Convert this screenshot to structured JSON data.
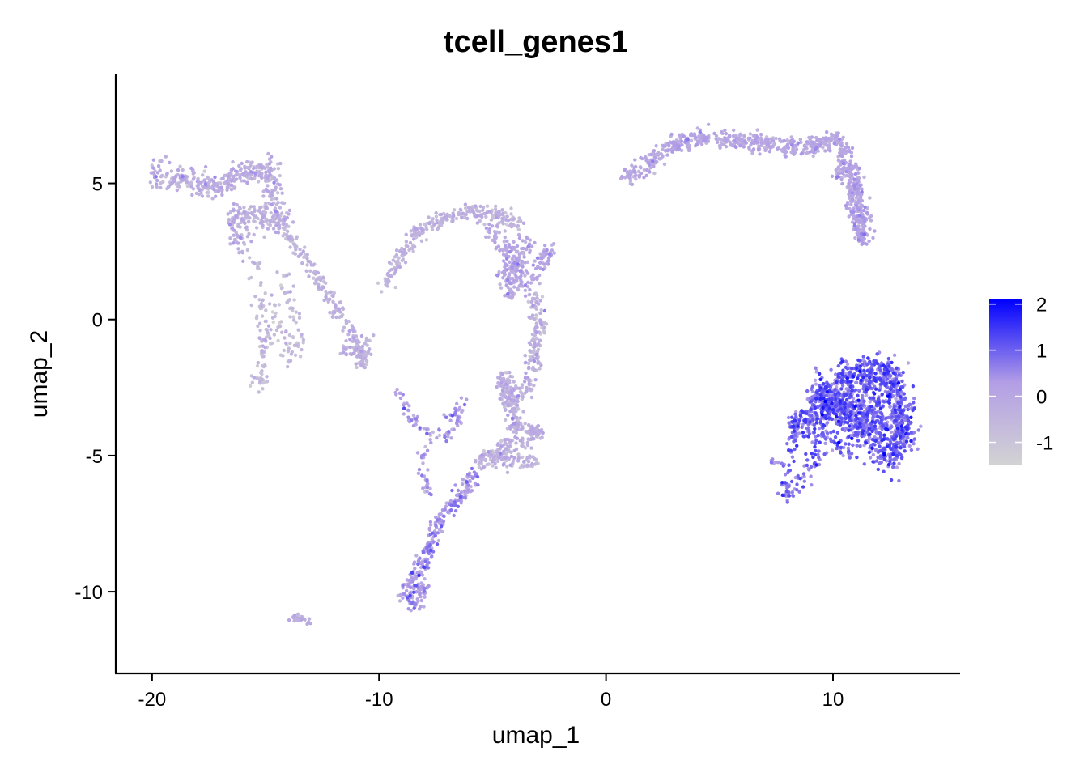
{
  "chart_data": {
    "type": "scatter",
    "title": "tcell_genes1",
    "xlabel": "umap_1",
    "ylabel": "umap_2",
    "xlim": [
      -21.6,
      15.6
    ],
    "ylim": [
      -13.0,
      9.0
    ],
    "xticks": [
      -20,
      -10,
      0,
      10
    ],
    "yticks": [
      5,
      0,
      -5,
      -10
    ],
    "xtick_labels": [
      "-20",
      "-10",
      "0",
      "10"
    ],
    "ytick_labels": [
      "5",
      "0",
      "-5",
      "-10"
    ],
    "grid": false,
    "legend": {
      "placement": "right",
      "type": "colorbar",
      "range": [
        -1.5,
        2.1
      ],
      "ticks": [
        2,
        1,
        0,
        -1
      ],
      "tick_labels": [
        "2",
        "1",
        "0",
        "-1"
      ],
      "color_low": "#d3d3d3",
      "color_high": "#0000ff"
    },
    "clusters": [
      {
        "name": "",
        "points": [
          [
            -19.8,
            5.4
          ],
          [
            -18.5,
            5.1
          ],
          [
            -17.5,
            4.9
          ],
          [
            -16.5,
            5.2
          ],
          [
            -15.5,
            5.4
          ],
          [
            -14.8,
            5.5
          ],
          [
            -14.7,
            4.4
          ],
          [
            -14.3,
            3.5
          ],
          [
            -15.3,
            3.7
          ],
          [
            -16.3,
            3.9
          ],
          [
            -16.0,
            2.7
          ]
        ],
        "spread": 0.42,
        "count": 520,
        "value_mean": -0.35,
        "value_sd": 0.35
      },
      {
        "name": "",
        "points": [
          [
            -15.5,
            2.2
          ],
          [
            -15.2,
            0.7
          ],
          [
            -15.0,
            -0.7
          ],
          [
            -15.3,
            -2.3
          ],
          [
            -14.5,
            0.2
          ],
          [
            -14.0,
            -1.5
          ],
          [
            -13.5,
            -0.8
          ],
          [
            -14.2,
            1.5
          ]
        ],
        "spread": 0.3,
        "count": 180,
        "value_mean": -0.8,
        "value_sd": 0.3
      },
      {
        "name": "",
        "points": [
          [
            -14.2,
            3.3
          ],
          [
            -13.3,
            2.3
          ],
          [
            -12.5,
            1.2
          ],
          [
            -11.8,
            0.3
          ],
          [
            -11.0,
            -0.6
          ],
          [
            -10.8,
            -1.7
          ],
          [
            -10.5,
            -0.9
          ],
          [
            -11.5,
            -1.2
          ]
        ],
        "spread": 0.25,
        "count": 230,
        "value_mean": -0.5,
        "value_sd": 0.3
      },
      {
        "name": "",
        "points": [
          [
            -9.7,
            1.3
          ],
          [
            -9.0,
            2.4
          ],
          [
            -8.3,
            3.2
          ],
          [
            -7.3,
            3.7
          ],
          [
            -6.0,
            4.0
          ],
          [
            -4.8,
            3.8
          ],
          [
            -3.8,
            3.5
          ]
        ],
        "spread": 0.28,
        "count": 260,
        "value_mean": -0.55,
        "value_sd": 0.3
      },
      {
        "name": "",
        "points": [
          [
            -5.0,
            3.2
          ],
          [
            -4.4,
            2.6
          ],
          [
            -3.8,
            2.0
          ],
          [
            -4.5,
            1.6
          ],
          [
            -3.5,
            2.8
          ],
          [
            -4.2,
            1.0
          ],
          [
            -3.2,
            1.4
          ],
          [
            -2.6,
            2.5
          ]
        ],
        "spread": 0.35,
        "count": 260,
        "value_mean": -0.05,
        "value_sd": 0.3
      },
      {
        "name": "",
        "points": [
          [
            -3.1,
            0.8
          ],
          [
            -3.0,
            -0.3
          ],
          [
            -3.2,
            -1.3
          ],
          [
            -3.5,
            -2.5
          ],
          [
            -4.2,
            -3.0
          ],
          [
            -4.5,
            -2.2
          ],
          [
            -4.0,
            -3.8
          ],
          [
            -3.0,
            -4.2
          ],
          [
            -4.5,
            -4.8
          ],
          [
            -5.5,
            -5.2
          ],
          [
            -3.2,
            -5.2
          ]
        ],
        "spread": 0.32,
        "count": 520,
        "value_mean": -0.4,
        "value_sd": 0.35
      },
      {
        "name": "",
        "points": [
          [
            -5.8,
            -5.8
          ],
          [
            -6.5,
            -6.6
          ],
          [
            -7.3,
            -7.4
          ],
          [
            -7.8,
            -8.3
          ],
          [
            -8.3,
            -9.3
          ],
          [
            -8.8,
            -10.0
          ],
          [
            -8.4,
            -10.5
          ],
          [
            -8.0,
            -9.8
          ]
        ],
        "spread": 0.28,
        "count": 300,
        "value_mean": 0.25,
        "value_sd": 0.4
      },
      {
        "name": "",
        "points": [
          [
            -9.2,
            -2.6
          ],
          [
            -8.6,
            -3.6
          ],
          [
            -8.0,
            -4.1
          ],
          [
            -7.0,
            -4.3
          ],
          [
            -6.5,
            -3.7
          ],
          [
            -6.3,
            -3.0
          ],
          [
            -8.1,
            -5.0
          ],
          [
            -8.0,
            -6.1
          ],
          [
            -7.8,
            -6.4
          ]
        ],
        "spread": 0.2,
        "count": 110,
        "value_mean": 0.1,
        "value_sd": 0.4
      },
      {
        "name": "",
        "points": [
          [
            -13.9,
            -10.9
          ],
          [
            -13.5,
            -11.0
          ],
          [
            -13.1,
            -11.1
          ]
        ],
        "spread": 0.15,
        "count": 25,
        "value_mean": -0.3,
        "value_sd": 0.3
      },
      {
        "name": "",
        "points": [
          [
            1.0,
            5.3
          ],
          [
            2.0,
            5.8
          ],
          [
            3.0,
            6.4
          ],
          [
            4.2,
            6.7
          ],
          [
            5.5,
            6.6
          ],
          [
            6.8,
            6.5
          ],
          [
            8.2,
            6.3
          ],
          [
            9.3,
            6.4
          ],
          [
            10.2,
            6.6
          ]
        ],
        "spread": 0.3,
        "count": 520,
        "value_mean": -0.15,
        "value_sd": 0.3
      },
      {
        "name": "",
        "points": [
          [
            10.5,
            6.2
          ],
          [
            10.3,
            5.3
          ],
          [
            10.9,
            5.5
          ],
          [
            11.1,
            4.6
          ],
          [
            11.3,
            3.7
          ],
          [
            11.3,
            2.9
          ],
          [
            10.8,
            4.9
          ]
        ],
        "spread": 0.3,
        "count": 330,
        "value_mean": -0.05,
        "value_sd": 0.3
      },
      {
        "name": "",
        "points": [
          [
            10.5,
            -2.2
          ],
          [
            11.5,
            -2.0
          ],
          [
            12.4,
            -1.9
          ],
          [
            12.7,
            -2.6
          ],
          [
            13.0,
            -3.5
          ],
          [
            13.1,
            -4.3
          ],
          [
            12.6,
            -5.0
          ],
          [
            11.8,
            -4.6
          ],
          [
            11.2,
            -4.0
          ],
          [
            10.4,
            -3.2
          ],
          [
            9.6,
            -2.6
          ],
          [
            9.2,
            -3.4
          ],
          [
            11.7,
            -3.1
          ],
          [
            12.2,
            -4.0
          ]
        ],
        "spread": 0.55,
        "count": 1250,
        "value_mean": 0.85,
        "value_sd": 0.45
      },
      {
        "name": "",
        "points": [
          [
            8.3,
            -4.0
          ],
          [
            8.9,
            -4.1
          ],
          [
            9.5,
            -4.8
          ],
          [
            8.9,
            -5.6
          ],
          [
            8.4,
            -6.1
          ],
          [
            7.9,
            -6.6
          ],
          [
            8.4,
            -3.5
          ],
          [
            9.0,
            -3.6
          ],
          [
            10.2,
            -4.7
          ],
          [
            10.8,
            -4.9
          ]
        ],
        "spread": 0.3,
        "count": 220,
        "value_mean": 0.9,
        "value_sd": 0.4
      },
      {
        "name": "",
        "points": [
          [
            7.3,
            -5.2
          ],
          [
            7.8,
            -5.3
          ]
        ],
        "spread": 0.1,
        "count": 8,
        "value_mean": 0.4,
        "value_sd": 0.3
      }
    ]
  }
}
